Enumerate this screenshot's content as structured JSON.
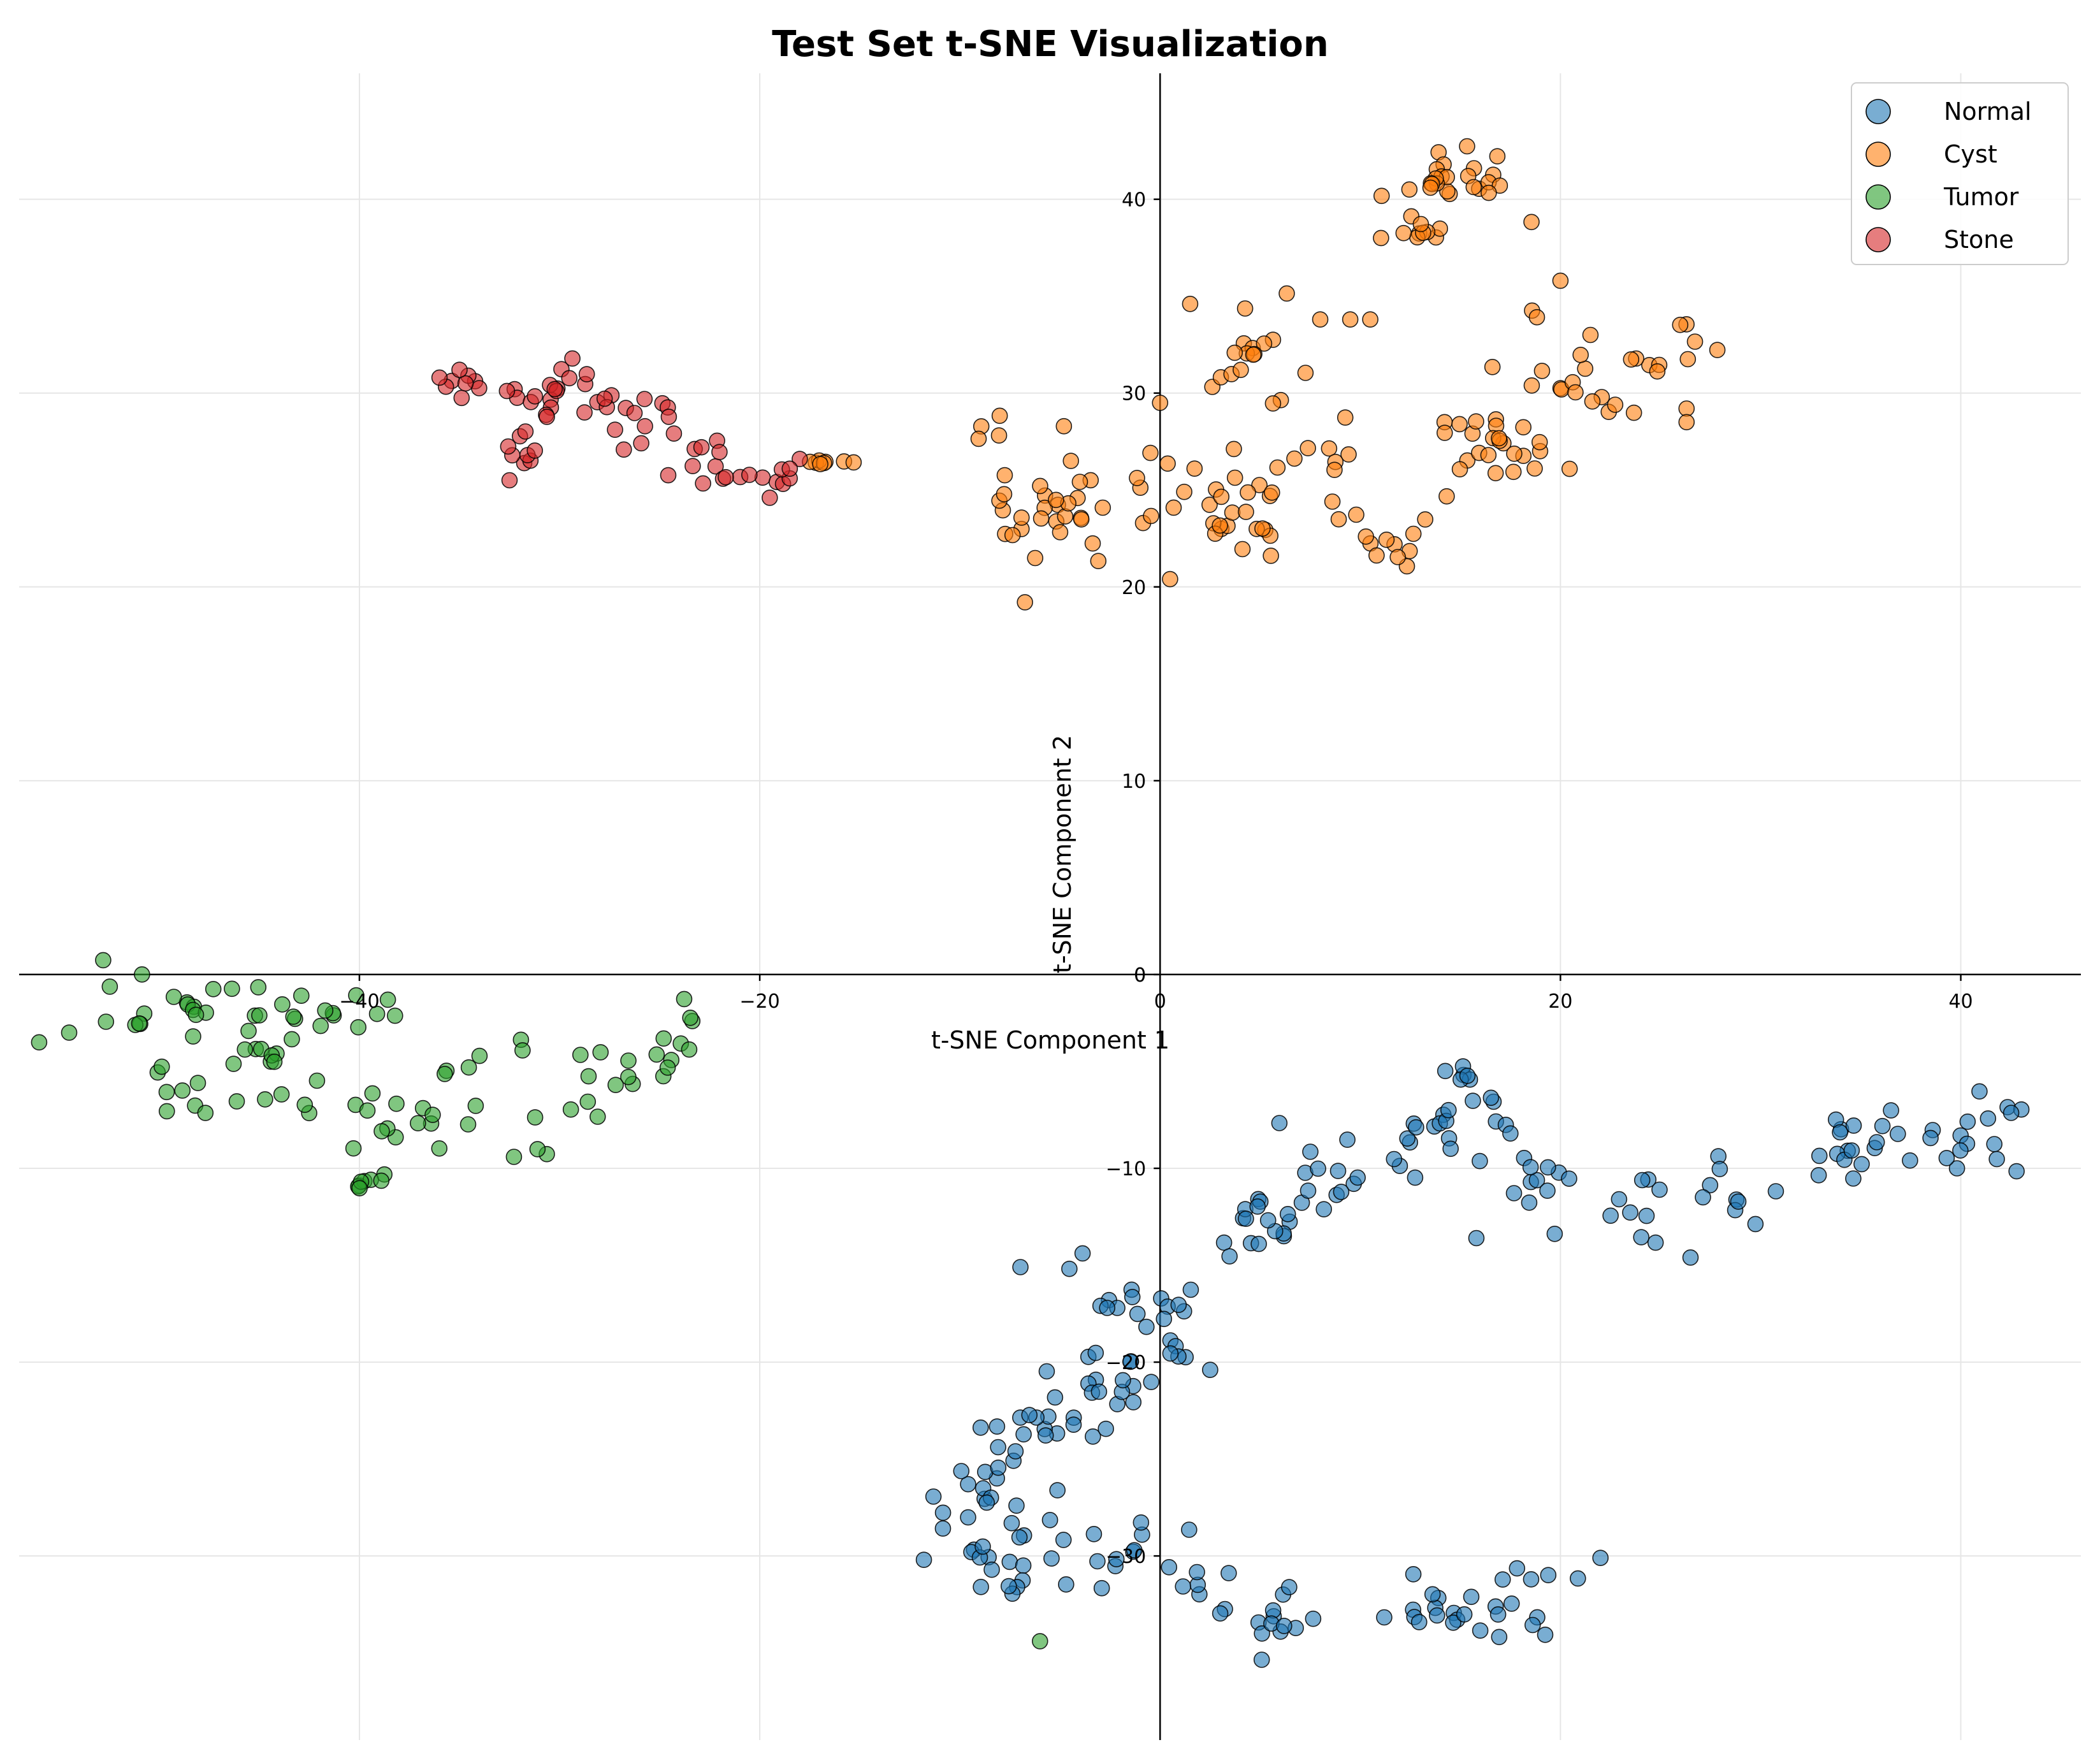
{
  "chart_data": {
    "type": "scatter",
    "title": "Test Set t-SNE Visualization",
    "xlabel": "t-SNE Component 1",
    "ylabel": "t-SNE Component 2",
    "xlim": [
      -57,
      46
    ],
    "ylim": [
      -39.5,
      46.5
    ],
    "xticks": [
      -40,
      -20,
      0,
      20,
      40
    ],
    "yticks": [
      -30,
      -20,
      -10,
      0,
      10,
      20,
      30,
      40
    ],
    "grid": true,
    "legend_position": "top-right",
    "series": [
      {
        "name": "Normal",
        "color": "#1f77b4",
        "clusters": [
          {
            "count": 130,
            "points": [
              [
                -3.5,
                -16
              ],
              [
                0,
                -16.5
              ],
              [
                5,
                -13
              ],
              [
                8,
                -11
              ],
              [
                12,
                -9
              ],
              [
                15,
                -8
              ],
              [
                19,
                -10.5
              ],
              [
                24,
                -12
              ],
              [
                29,
                -11
              ],
              [
                34,
                -9
              ],
              [
                38,
                -8.5
              ],
              [
                41,
                -8
              ]
            ],
            "spread": [
              1.8,
              1.6
            ]
          },
          {
            "count": 45,
            "points": [
              [
                -10,
                -27
              ],
              [
                -8,
                -25
              ],
              [
                -5.5,
                -23.5
              ],
              [
                -3.5,
                -22.5
              ],
              [
                -7,
                -29
              ]
            ],
            "spread": [
              1.5,
              1.4
            ]
          },
          {
            "count": 70,
            "points": [
              [
                -9,
                -30.5
              ],
              [
                -5,
                -30.5
              ],
              [
                -1,
                -30.3
              ],
              [
                3,
                -31
              ],
              [
                6,
                -33
              ],
              [
                9,
                -32
              ],
              [
                13,
                -33
              ],
              [
                16,
                -33
              ],
              [
                18,
                -32
              ]
            ],
            "spread": [
              1.7,
              1.2
            ]
          },
          {
            "count": 14,
            "points": [
              [
                -3,
                -19.5
              ],
              [
                -1,
                -20
              ],
              [
                1,
                -19.5
              ],
              [
                -2,
                -21.5
              ]
            ],
            "spread": [
              0.8,
              0.6
            ]
          },
          {
            "count": 6,
            "points": [
              [
                14.5,
                -5
              ],
              [
                15,
                -5.5
              ]
            ],
            "spread": [
              0.5,
              0.4
            ]
          }
        ],
        "fixed_points": [
          [
            -11.8,
            -30.2
          ],
          [
            22,
            -30.1
          ],
          [
            26.5,
            -14.6
          ],
          [
            17.5,
            -8.2
          ],
          [
            15.8,
            -13.6
          ],
          [
            2.5,
            -20.4
          ]
        ]
      },
      {
        "name": "Cyst",
        "color": "#ff7f0e",
        "clusters": [
          {
            "count": 60,
            "points": [
              [
                -7,
                24
              ],
              [
                -4,
                24.5
              ],
              [
                -1,
                25
              ],
              [
                2,
                24.5
              ],
              [
                4,
                23
              ],
              [
                -8,
                28
              ],
              [
                -5,
                22.5
              ]
            ],
            "spread": [
              1.8,
              1.3
            ]
          },
          {
            "count": 30,
            "points": [
              [
                3,
                31
              ],
              [
                5,
                33
              ],
              [
                6,
                30
              ],
              [
                8,
                26
              ],
              [
                5,
                25
              ]
            ],
            "spread": [
              1.3,
              1.4
            ]
          },
          {
            "count": 35,
            "points": [
              [
                12,
                40.5
              ],
              [
                14,
                41
              ],
              [
                16,
                41.5
              ],
              [
                17,
                39.5
              ],
              [
                13,
                38.5
              ]
            ],
            "spread": [
              1.2,
              1.0
            ]
          },
          {
            "count": 50,
            "points": [
              [
                18,
                33
              ],
              [
                20,
                31
              ],
              [
                22,
                30
              ],
              [
                24,
                31
              ],
              [
                26,
                33
              ],
              [
                17,
                27
              ],
              [
                19,
                26
              ],
              [
                16,
                28.5
              ]
            ],
            "spread": [
              1.4,
              1.3
            ]
          },
          {
            "count": 14,
            "points": [
              [
                11,
                22
              ],
              [
                12.5,
                21.5
              ],
              [
                13,
                23.5
              ],
              [
                9,
                24
              ]
            ],
            "spread": [
              0.9,
              0.8
            ]
          },
          {
            "count": 8,
            "points": [
              [
                -17,
                26.5
              ],
              [
                -16,
                26.4
              ]
            ],
            "spread": [
              0.7,
              0.2
            ]
          }
        ],
        "fixed_points": [
          [
            0.5,
            20.4
          ],
          [
            9.5,
            33.8
          ],
          [
            10.5,
            33.8
          ],
          [
            8,
            33.8
          ],
          [
            26.3,
            29.2
          ],
          [
            26.3,
            28.5
          ],
          [
            1.5,
            34.6
          ],
          [
            0,
            29.5
          ],
          [
            20,
            35.8
          ],
          [
            21.5,
            33
          ]
        ]
      },
      {
        "name": "Tumor",
        "color": "#2ca02c",
        "clusters": [
          {
            "count": 45,
            "points": [
              [
                -52,
                -2
              ],
              [
                -49,
                -1.5
              ],
              [
                -46,
                -2
              ],
              [
                -44,
                -1
              ],
              [
                -42,
                -2
              ],
              [
                -40,
                -1.5
              ],
              [
                -50,
                -5
              ],
              [
                -48,
                -7
              ]
            ],
            "spread": [
              1.8,
              1.3
            ]
          },
          {
            "count": 25,
            "points": [
              [
                -44,
                -4
              ],
              [
                -42,
                -6
              ],
              [
                -39,
                -7.5
              ],
              [
                -37,
                -8
              ]
            ],
            "spread": [
              1.3,
              1.0
            ]
          },
          {
            "count": 30,
            "points": [
              [
                -36,
                -5
              ],
              [
                -33,
                -4
              ],
              [
                -31,
                -5
              ],
              [
                -29,
                -4
              ],
              [
                -27,
                -5
              ],
              [
                -25,
                -3.5
              ],
              [
                -30,
                -8
              ],
              [
                -32,
                -9
              ]
            ],
            "spread": [
              1.5,
              1.3
            ]
          },
          {
            "count": 8,
            "points": [
              [
                -39,
                -10.5
              ],
              [
                -40,
                -10.8
              ]
            ],
            "spread": [
              0.4,
              0.3
            ]
          }
        ],
        "fixed_points": [
          [
            -56,
            -3.5
          ],
          [
            -54.5,
            -3
          ],
          [
            -6,
            -34.4
          ],
          [
            -24.8,
            -3.3
          ],
          [
            -27.2,
            -5.7
          ],
          [
            -34,
            -4.2
          ]
        ]
      },
      {
        "name": "Stone",
        "color": "#d62728",
        "clusters": [
          {
            "count": 22,
            "points": [
              [
                -35,
                30.5
              ],
              [
                -33,
                30
              ],
              [
                -31,
                29.5
              ],
              [
                -29,
                31
              ]
            ],
            "spread": [
              1.0,
              0.6
            ]
          },
          {
            "count": 22,
            "points": [
              [
                -32,
                27
              ],
              [
                -30,
                28.5
              ],
              [
                -28,
                29.5
              ],
              [
                -26,
                29
              ]
            ],
            "spread": [
              1.1,
              0.9
            ]
          },
          {
            "count": 22,
            "points": [
              [
                -25,
                28
              ],
              [
                -23,
                26.5
              ],
              [
                -21,
                25.8
              ],
              [
                -19,
                25.5
              ]
            ],
            "spread": [
              1.1,
              0.8
            ]
          }
        ],
        "fixed_points": [
          [
            -36,
            30.8
          ],
          [
            -35,
            31.2
          ],
          [
            -18,
            26.6
          ],
          [
            -18.5,
            26.1
          ],
          [
            -19.5,
            24.6
          ],
          [
            -32.5,
            25.5
          ]
        ]
      }
    ]
  }
}
